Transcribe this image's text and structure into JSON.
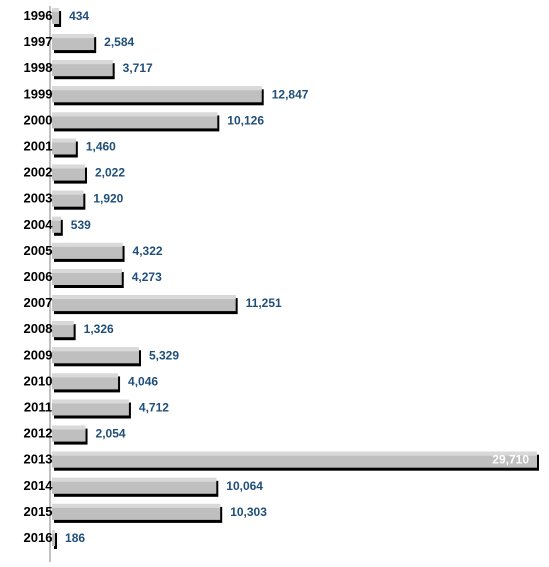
{
  "chart_data": {
    "type": "bar",
    "orientation": "horizontal",
    "title": "",
    "xlabel": "",
    "ylabel": "",
    "categories": [
      "1996",
      "1997",
      "1998",
      "1999",
      "2000",
      "2001",
      "2002",
      "2003",
      "2004",
      "2005",
      "2006",
      "2007",
      "2008",
      "2009",
      "2010",
      "2011",
      "2012",
      "2013",
      "2014",
      "2015",
      "2016"
    ],
    "values": [
      434,
      2584,
      3717,
      12847,
      10126,
      1460,
      2022,
      1920,
      539,
      4322,
      4273,
      11251,
      1326,
      5329,
      4046,
      4712,
      2054,
      29710,
      10064,
      10303,
      186
    ],
    "value_labels": [
      "434",
      "2,584",
      "3,717",
      "12,847",
      "10,126",
      "1,460",
      "2,022",
      "1,920",
      "539",
      "4,322",
      "4,273",
      "11,251",
      "1,326",
      "5,329",
      "4,046",
      "4,712",
      "2,054",
      "29,710",
      "10,064",
      "10,303",
      "186"
    ],
    "xlim": [
      0,
      29710
    ],
    "grid": false,
    "legend": "none",
    "colors": {
      "bar": "#bfbfbf",
      "bar_highlight": "#d9d9d9",
      "shadow": "#000000",
      "label": "#1f4e79",
      "label_inside": "#ffffff",
      "axis": "#808080"
    }
  }
}
